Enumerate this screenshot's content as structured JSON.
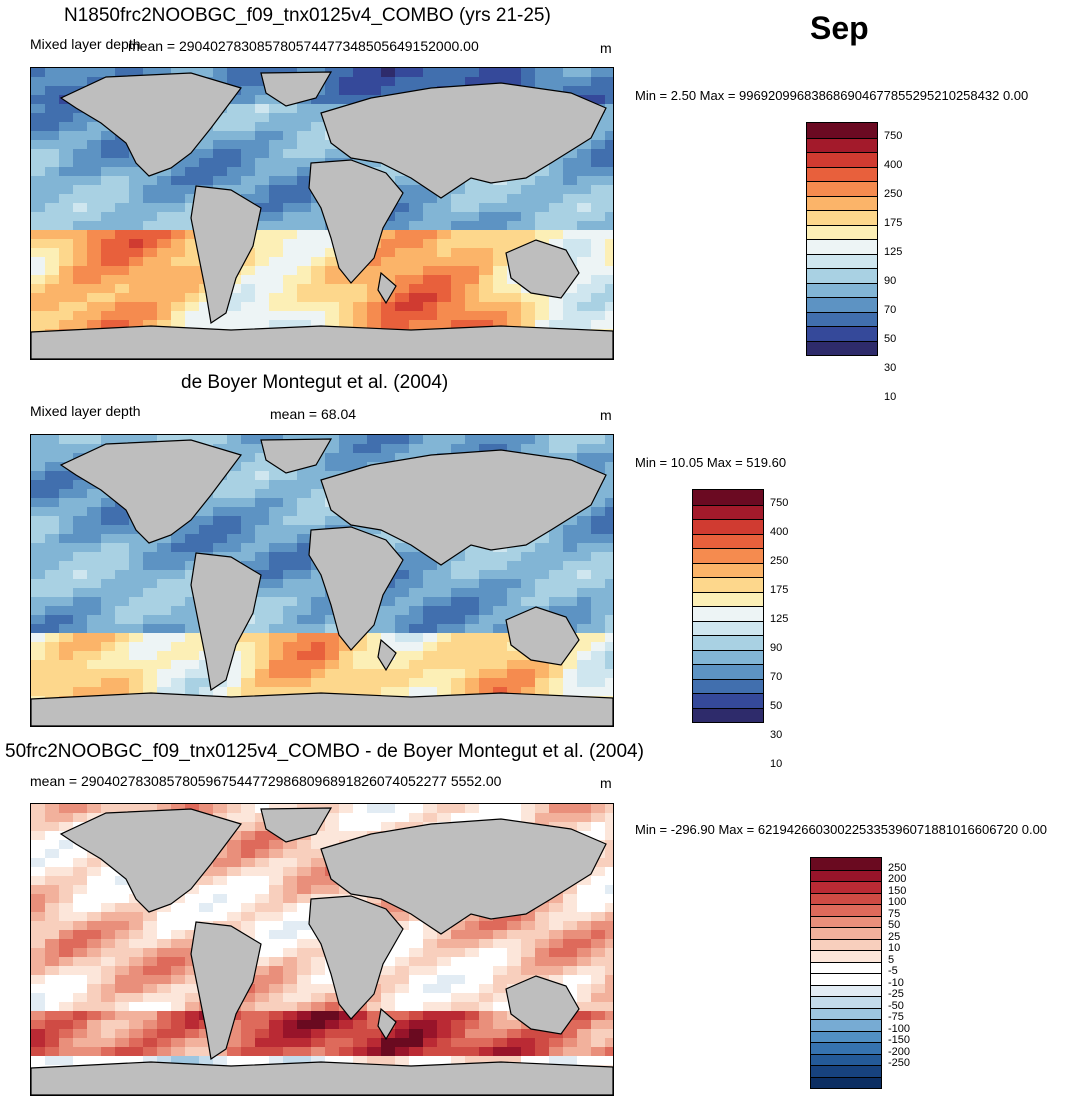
{
  "month": "Sep",
  "panels": [
    {
      "title": "N1850frc2NOOBGC_f09_tnx0125v4_COMBO (yrs 21-25)",
      "left_label": "Mixed layer depth",
      "mean_text": "mean = 290402783085780574477348505649152000.00",
      "units": "m",
      "minmax": "Min =   2.50 Max = 996920996838686904677855295210258432 0.00",
      "scale": "seq",
      "field": "model"
    },
    {
      "title": "de Boyer Montegut et al. (2004)",
      "left_label": "Mixed layer depth",
      "mean_text": "mean =  68.04",
      "units": "m",
      "minmax": "Min =  10.05 Max = 519.60",
      "scale": "seq",
      "field": "obs"
    },
    {
      "title": "50frc2NOOBGC_f09_tnx0125v4_COMBO - de Boyer Montegut et al. (2004)",
      "left_label": "",
      "mean_text": "mean = 29040278308578059675447729868096891826074052277 5552.00",
      "units": "m",
      "minmax": "Min = -296.90 Max = 621942660300225335396071881016606720 0.00",
      "scale": "div",
      "field": "diff"
    }
  ],
  "seq_scale": {
    "labels": [
      "750",
      "400",
      "250",
      "175",
      "125",
      "90",
      "70",
      "50",
      "30",
      "10"
    ],
    "colors": [
      "#6b0a22",
      "#a31a2b",
      "#d03b31",
      "#e8603c",
      "#f58b4f",
      "#fbb469",
      "#fdd78c",
      "#fcefb6",
      "#edf4f5",
      "#cfe6ef",
      "#a9d1e3",
      "#82b5d5",
      "#5d93c3",
      "#416fae",
      "#35499a",
      "#2e2b6b"
    ]
  },
  "div_scale": {
    "labels": [
      "250",
      "200",
      "150",
      "100",
      "75",
      "50",
      "25",
      "10",
      "5",
      "-5",
      "-10",
      "-25",
      "-50",
      "-75",
      "-100",
      "-150",
      "-200",
      "-250"
    ],
    "colors": [
      "#6a0a20",
      "#98142a",
      "#ba2a34",
      "#cf4b44",
      "#de6a5b",
      "#e98f7b",
      "#f2b19c",
      "#f8cfbd",
      "#fce6da",
      "#ffffff",
      "#ffffff",
      "#e2ecf4",
      "#c3dbeb",
      "#9ec6e0",
      "#77abd3",
      "#5290c4",
      "#3673b0",
      "#245a98",
      "#17427e",
      "#0c2e62"
    ]
  }
}
